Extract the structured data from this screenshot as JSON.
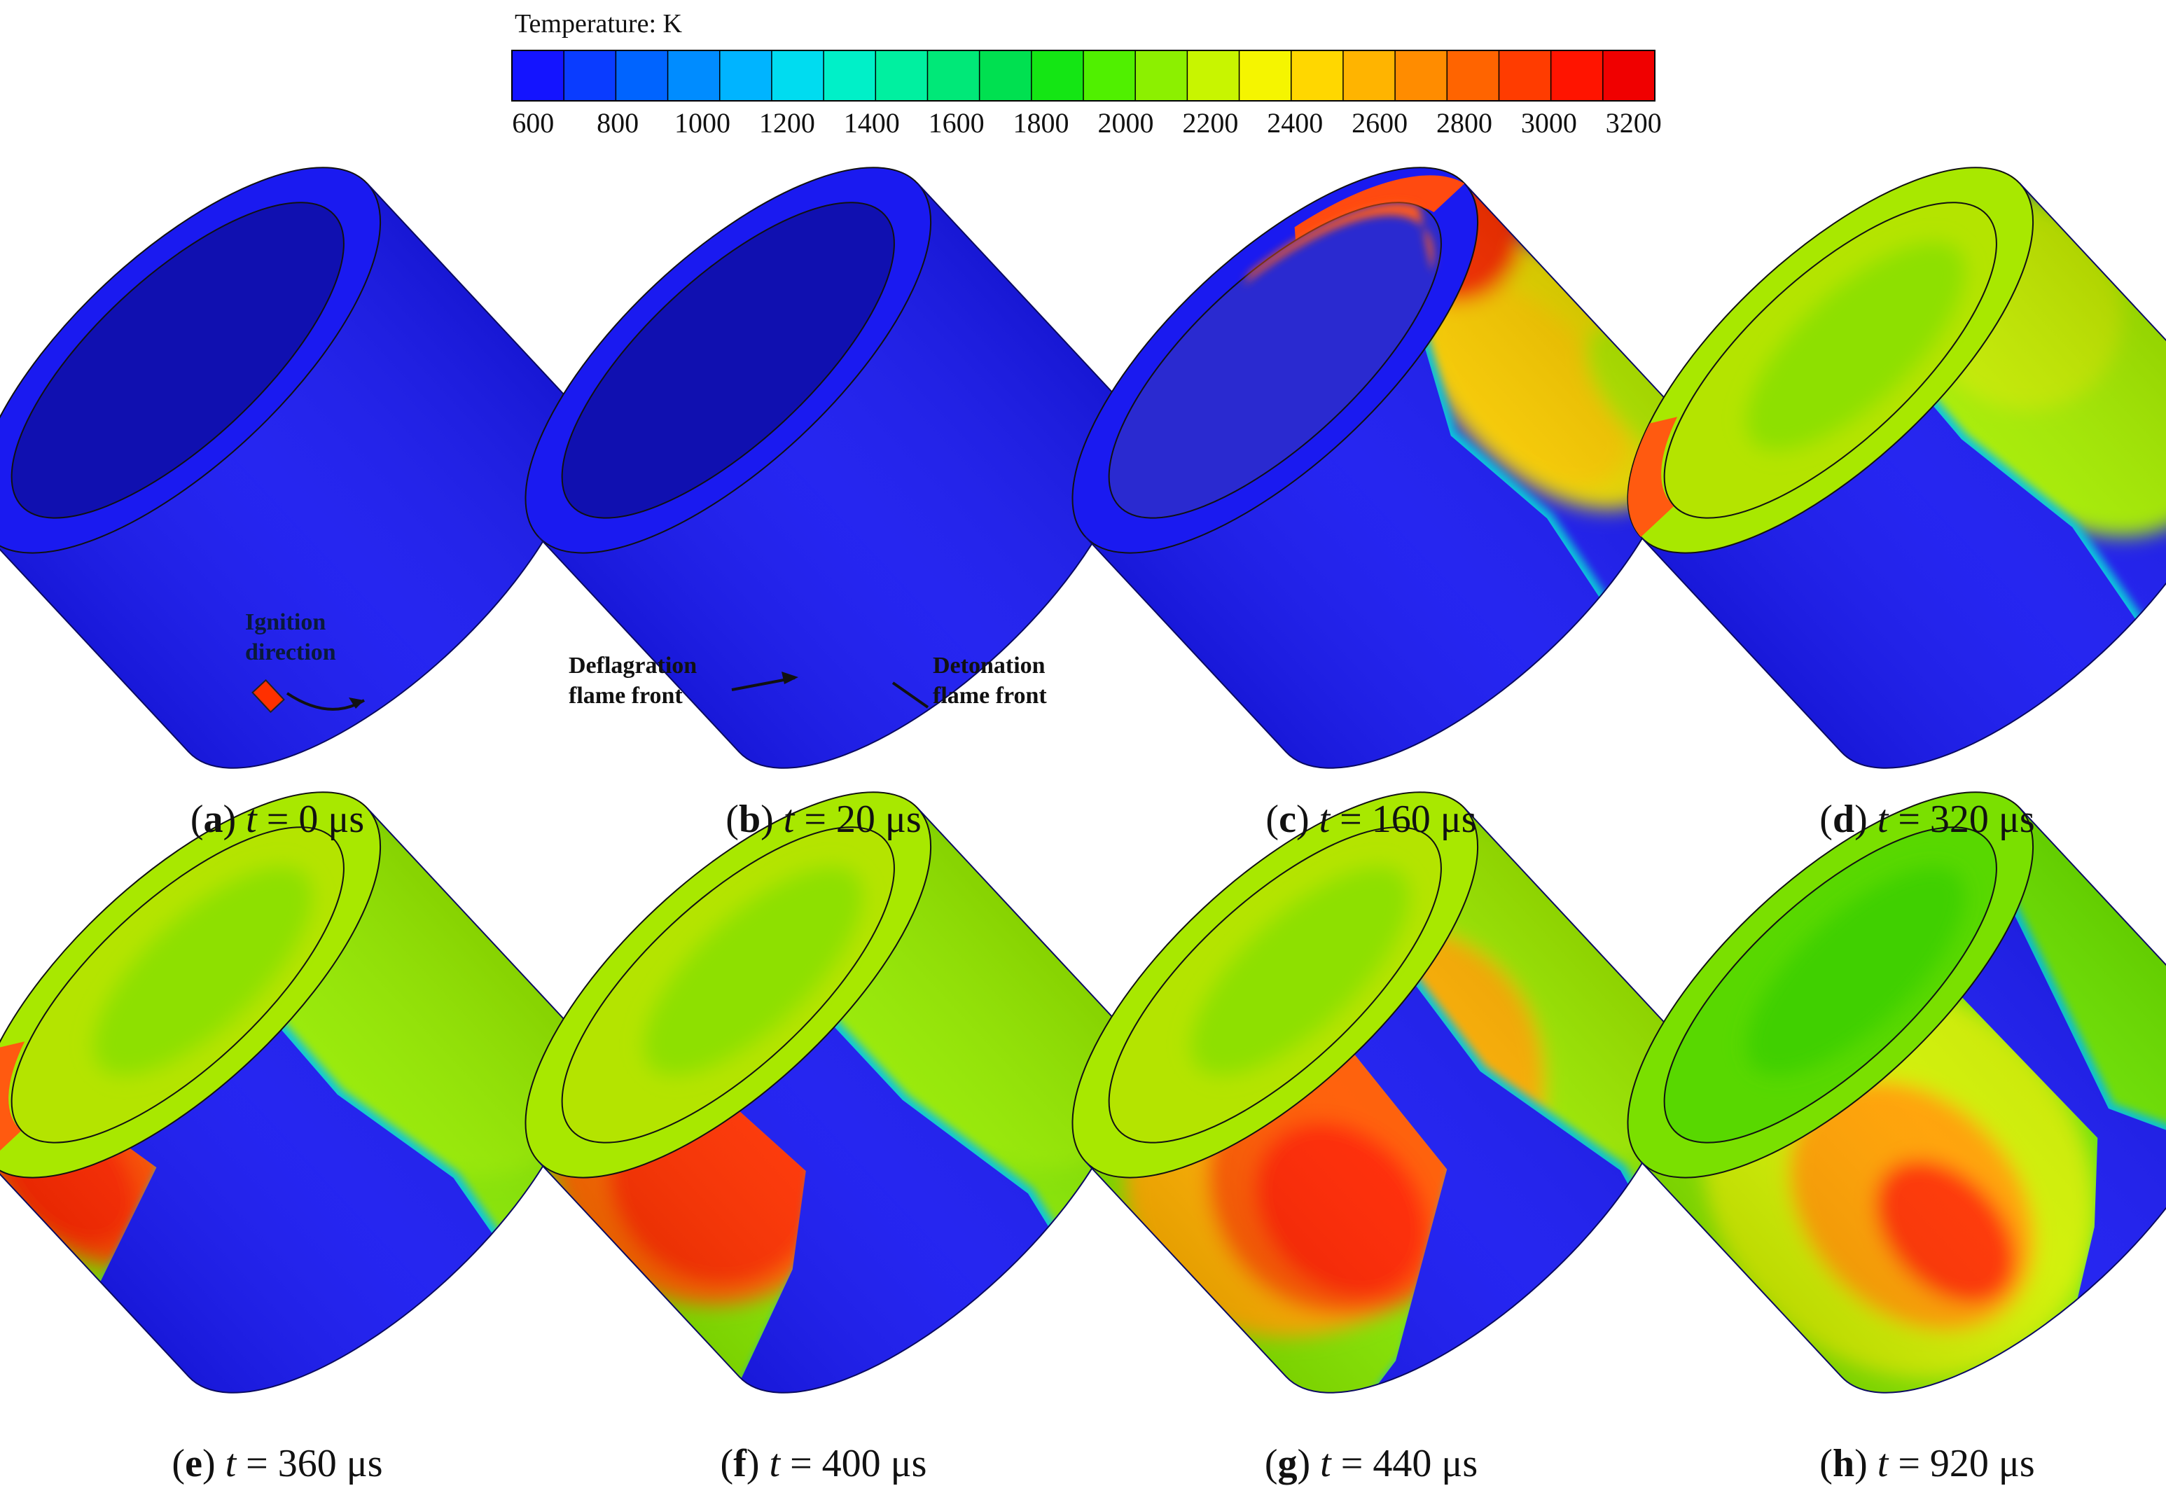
{
  "colorbar": {
    "title": "Temperature: K",
    "ticks": [
      "600",
      "800",
      "1000",
      "1200",
      "1400",
      "1600",
      "1800",
      "2000",
      "2200",
      "2400",
      "2600",
      "2800",
      "3000",
      "3200"
    ],
    "tick_values": [
      600,
      800,
      1000,
      1200,
      1400,
      1600,
      1800,
      2000,
      2200,
      2400,
      2600,
      2800,
      3000,
      3200
    ],
    "range": [
      550,
      3250
    ],
    "band_colors": [
      "#1414ff",
      "#0a3cff",
      "#0064ff",
      "#008cff",
      "#00b4ff",
      "#00dcf0",
      "#00f0c8",
      "#00f0a0",
      "#00e878",
      "#00e050",
      "#14e614",
      "#50f000",
      "#8cf000",
      "#c8f500",
      "#f5f500",
      "#ffd700",
      "#ffb400",
      "#ff8c00",
      "#ff6400",
      "#ff3c00",
      "#ff1400",
      "#f00000"
    ]
  },
  "annotations": {
    "a_ignition": "Ignition\ndirection",
    "b_deflagration": "Deflagration\nflame front",
    "b_detonation": "Detonation\nflame front"
  },
  "panels": [
    {
      "letter": "a",
      "t": "0"
    },
    {
      "letter": "b",
      "t": "20"
    },
    {
      "letter": "c",
      "t": "160"
    },
    {
      "letter": "d",
      "t": "320"
    },
    {
      "letter": "e",
      "t": "360"
    },
    {
      "letter": "f",
      "t": "400"
    },
    {
      "letter": "g",
      "t": "440"
    },
    {
      "letter": "h",
      "t": "920"
    }
  ],
  "caption_parts": {
    "open": "(",
    "close": ")",
    "var": "t",
    "eq": " = ",
    "unit": " μs"
  }
}
